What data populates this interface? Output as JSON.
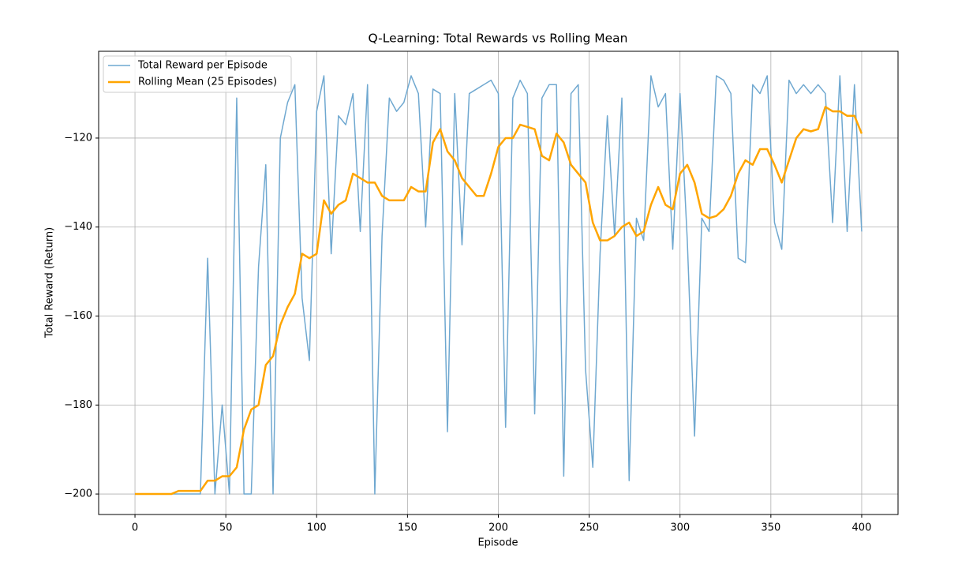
{
  "chart_data": {
    "type": "line",
    "title": "Q-Learning: Total Rewards vs Rolling Mean",
    "xlabel": "Episode",
    "ylabel": "Total Reward (Return)",
    "x": [
      0,
      4,
      8,
      12,
      16,
      20,
      24,
      28,
      32,
      36,
      40,
      44,
      48,
      52,
      56,
      60,
      64,
      68,
      72,
      76,
      80,
      84,
      88,
      92,
      96,
      100,
      104,
      108,
      112,
      116,
      120,
      124,
      128,
      132,
      136,
      140,
      144,
      148,
      152,
      156,
      160,
      164,
      168,
      172,
      176,
      180,
      184,
      188,
      192,
      196,
      200,
      204,
      208,
      212,
      216,
      220,
      224,
      228,
      232,
      236,
      240,
      244,
      248,
      252,
      256,
      260,
      264,
      268,
      272,
      276,
      280,
      284,
      288,
      292,
      296,
      300,
      304,
      308,
      312,
      316,
      320,
      324,
      328,
      332,
      336,
      340,
      344,
      348,
      352,
      356,
      360,
      364,
      368,
      372,
      376,
      380,
      384,
      388,
      392,
      396,
      400
    ],
    "series": [
      {
        "name": "Total Reward per Episode",
        "color": "#6fa8d0",
        "width": 1.5,
        "values": [
          -200,
          -200,
          -200,
          -200,
          -200,
          -200,
          -200,
          -200,
          -200,
          -200,
          -147,
          -200,
          -180,
          -200,
          -111,
          -200,
          -200,
          -149,
          -126,
          -200,
          -120,
          -112,
          -108,
          -156,
          -170,
          -114,
          -106,
          -146,
          -115,
          -117,
          -110,
          -141,
          -108,
          -200,
          -142,
          -111,
          -114,
          -112,
          -106,
          -110,
          -140,
          -109,
          -110,
          -186,
          -110,
          -144,
          -110,
          -109,
          -108,
          -107,
          -110,
          -185,
          -111,
          -107,
          -110,
          -182,
          -111,
          -108,
          -108,
          -196,
          -110,
          -108,
          -172,
          -194,
          -146,
          -115,
          -142,
          -111,
          -197,
          -138,
          -143,
          -106,
          -113,
          -110,
          -145,
          -110,
          -143,
          -187,
          -138,
          -141,
          -106,
          -107,
          -110,
          -147,
          -148,
          -108,
          -110,
          -106,
          -139,
          -145,
          -107,
          -110,
          -108,
          -110,
          -108,
          -110,
          -139,
          -106,
          -141,
          -108,
          -141
        ]
      },
      {
        "name": "Rolling Mean (25 Episodes)",
        "color": "#ffa500",
        "width": 2.5,
        "values": [
          -200,
          -200,
          -200,
          -200,
          -200,
          -200,
          -199.3,
          -199.3,
          -199.3,
          -199.3,
          -197,
          -197,
          -196,
          -196,
          -194,
          -185.5,
          -181,
          -180,
          -171,
          -169,
          -162,
          -158,
          -155,
          -146,
          -147,
          -146,
          -134,
          -137,
          -135,
          -134,
          -128,
          -129,
          -130,
          -130,
          -133,
          -134,
          -134,
          -134,
          -131,
          -132,
          -132,
          -121,
          -118,
          -123,
          -125,
          -129,
          -131,
          -133,
          -133,
          -128,
          -122,
          -120,
          -120,
          -117,
          -117.5,
          -118,
          -124,
          -125,
          -119,
          -121,
          -126,
          -128,
          -130,
          -139,
          -143,
          -143,
          -142,
          -140,
          -139,
          -142,
          -141,
          -135,
          -131,
          -135,
          -136,
          -128,
          -126,
          -130,
          -137,
          -138,
          -137.5,
          -136,
          -133,
          -128,
          -125,
          -126,
          -122.5,
          -122.5,
          -126,
          -130,
          -125,
          -120,
          -118,
          -118.5,
          -118,
          -113,
          -114,
          -114,
          -115,
          -115,
          -119
        ]
      }
    ],
    "xlim": [
      -20,
      420
    ],
    "ylim": [
      -204.6,
      -100.5
    ],
    "xticks": [
      0,
      50,
      100,
      150,
      200,
      250,
      300,
      350,
      400
    ],
    "yticks": [
      {
        "value": -200,
        "label": "−200"
      },
      {
        "value": -180,
        "label": "−180"
      },
      {
        "value": -160,
        "label": "−160"
      },
      {
        "value": -140,
        "label": "−140"
      },
      {
        "value": -120,
        "label": "−120"
      }
    ],
    "grid": true,
    "legend": "upper-left"
  }
}
